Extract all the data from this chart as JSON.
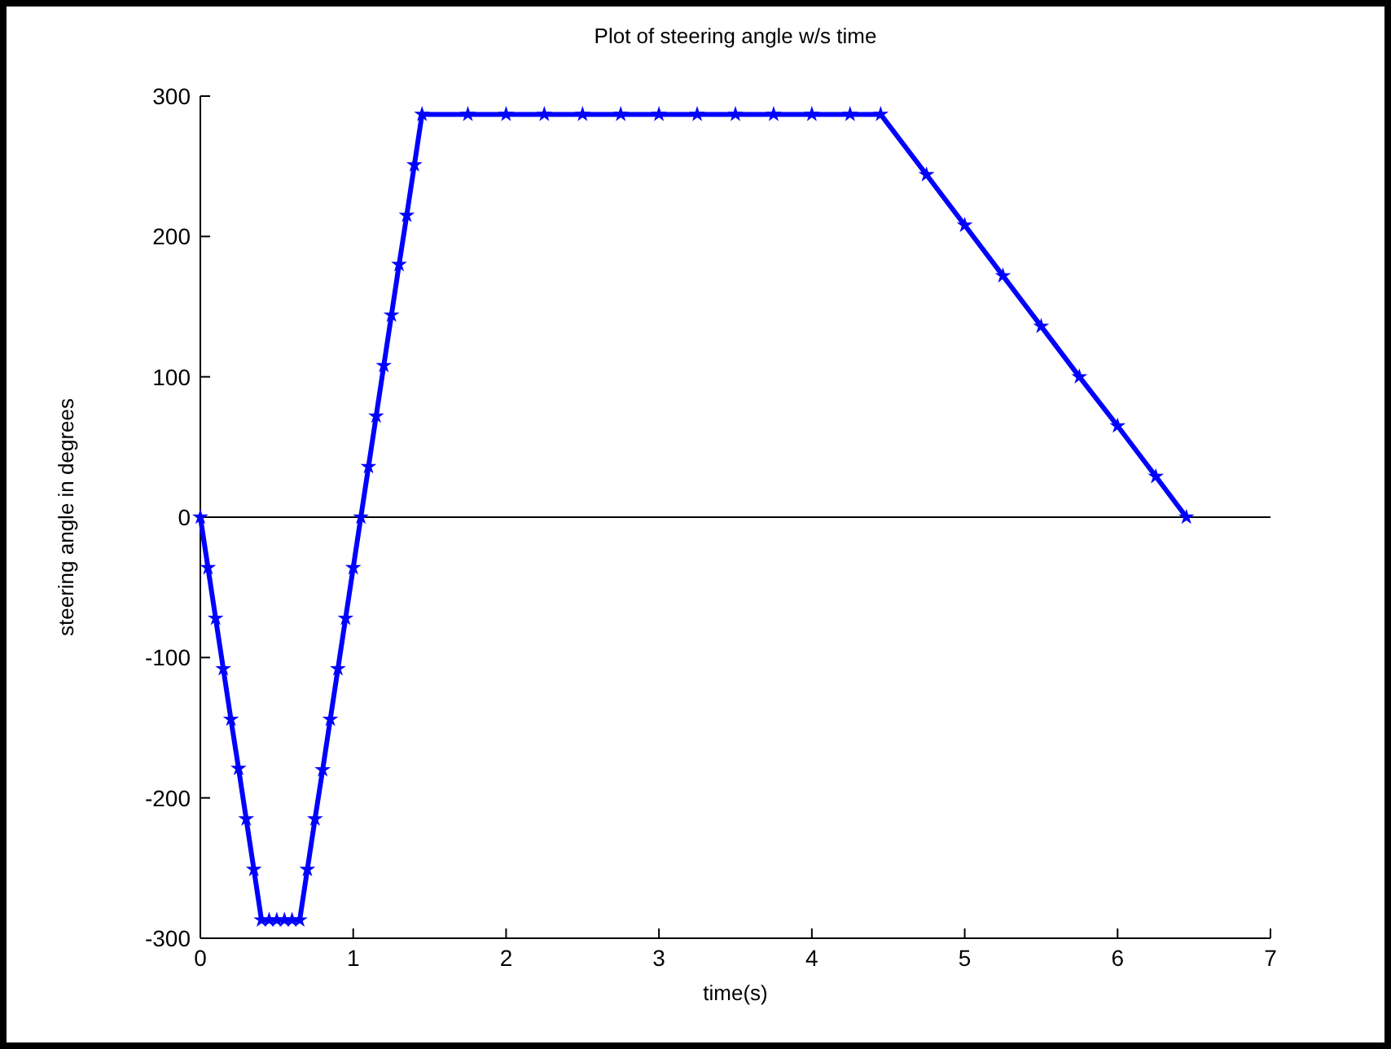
{
  "chart_data": {
    "type": "line",
    "title": "Plot of steering angle w/s time",
    "xlabel": "time(s)",
    "ylabel": "steering angle in degrees",
    "xlim": [
      0,
      7
    ],
    "xticks": [
      0,
      1,
      2,
      3,
      4,
      5,
      6,
      7
    ],
    "ylim": [
      -300,
      300
    ],
    "yticks": [
      -300,
      -200,
      -100,
      0,
      100,
      200,
      300
    ],
    "grid": false,
    "marker": "star",
    "line_style": "solid",
    "ref_lines": [
      {
        "axis": "y",
        "value": 0,
        "color": "#000000"
      }
    ],
    "series": [
      {
        "color": "#0000ff",
        "x": [
          0,
          0.05,
          0.1,
          0.15,
          0.2,
          0.25,
          0.3,
          0.35,
          0.4,
          0.45,
          0.5,
          0.55,
          0.6,
          0.65,
          0.7,
          0.75,
          0.8,
          0.85,
          0.9,
          0.95,
          1.0,
          1.05,
          1.1,
          1.15,
          1.2,
          1.25,
          1.3,
          1.35,
          1.4,
          1.45,
          1.75,
          2.0,
          2.25,
          2.5,
          2.75,
          3.0,
          3.25,
          3.5,
          3.75,
          4.0,
          4.25,
          4.45,
          4.75,
          5.0,
          5.25,
          5.5,
          5.75,
          6.0,
          6.25,
          6.45
        ],
        "values": [
          0,
          -36,
          -72,
          -108,
          -144,
          -179,
          -215,
          -251,
          -287,
          -287,
          -287,
          -287,
          -287,
          -287,
          -251,
          -215,
          -180,
          -144,
          -108,
          -72,
          -36,
          0,
          36,
          72,
          108,
          144,
          180,
          215,
          251,
          287,
          287,
          287,
          287,
          287,
          287,
          287,
          287,
          287,
          287,
          287,
          287,
          287,
          244,
          208,
          172,
          136,
          100,
          65,
          29,
          0
        ]
      }
    ]
  }
}
